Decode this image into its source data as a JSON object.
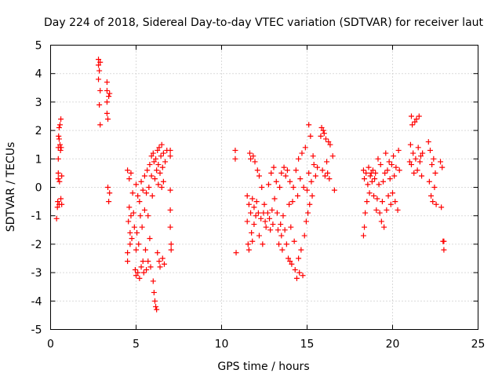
{
  "chart_data": {
    "type": "scatter",
    "title": "Day 224 of 2018, Sidereal Day-to-day VTEC variation (SDTVAR) for receiver laut",
    "xlabel": "GPS time / hours",
    "ylabel": "SDTVAR / TECUs",
    "xlim": [
      0,
      25
    ],
    "ylim": [
      -5,
      5
    ],
    "xticks": [
      0,
      5,
      10,
      15,
      20,
      25
    ],
    "yticks": [
      -5,
      -4,
      -3,
      -2,
      -1,
      0,
      1,
      2,
      3,
      4,
      5
    ],
    "grid": true,
    "marker": "+",
    "color": "#ff0000",
    "series": [
      {
        "name": "SDTVAR",
        "points": [
          [
            0.35,
            -1.1
          ],
          [
            0.4,
            -0.7
          ],
          [
            0.42,
            -0.5
          ],
          [
            0.45,
            0.3
          ],
          [
            0.45,
            0.5
          ],
          [
            0.45,
            1.0
          ],
          [
            0.45,
            1.4
          ],
          [
            0.47,
            1.8
          ],
          [
            0.5,
            2.1
          ],
          [
            0.5,
            1.7
          ],
          [
            0.5,
            -0.6
          ],
          [
            0.52,
            0.2
          ],
          [
            0.55,
            2.2
          ],
          [
            0.55,
            1.5
          ],
          [
            0.58,
            1.3
          ],
          [
            0.6,
            2.4
          ],
          [
            0.6,
            -0.4
          ],
          [
            0.62,
            1.4
          ],
          [
            0.65,
            0.4
          ],
          [
            0.65,
            -0.6
          ],
          [
            2.8,
            4.5
          ],
          [
            2.8,
            4.3
          ],
          [
            2.8,
            3.8
          ],
          [
            2.85,
            4.1
          ],
          [
            2.85,
            2.9
          ],
          [
            2.9,
            2.2
          ],
          [
            2.9,
            3.4
          ],
          [
            2.9,
            4.4
          ],
          [
            3.3,
            3.7
          ],
          [
            3.3,
            3.4
          ],
          [
            3.3,
            3.0
          ],
          [
            3.3,
            2.6
          ],
          [
            3.35,
            2.4
          ],
          [
            3.35,
            0.0
          ],
          [
            3.4,
            3.2
          ],
          [
            3.4,
            -0.5
          ],
          [
            3.45,
            -0.2
          ],
          [
            3.45,
            3.3
          ],
          [
            4.5,
            0.6
          ],
          [
            4.5,
            -2.3
          ],
          [
            4.5,
            -2.6
          ],
          [
            4.55,
            -1.2
          ],
          [
            4.6,
            0.3
          ],
          [
            4.6,
            -0.7
          ],
          [
            4.65,
            -1.6
          ],
          [
            4.65,
            -2.0
          ],
          [
            4.7,
            0.5
          ],
          [
            4.7,
            -1.0
          ],
          [
            4.75,
            -1.8
          ],
          [
            4.8,
            -0.2
          ],
          [
            4.85,
            -0.9
          ],
          [
            4.9,
            -1.4
          ],
          [
            4.95,
            -2.9
          ],
          [
            5.0,
            -3.1
          ],
          [
            5.0,
            -2.2
          ],
          [
            5.0,
            0.1
          ],
          [
            5.05,
            -1.6
          ],
          [
            5.1,
            -0.3
          ],
          [
            5.1,
            -3.0
          ],
          [
            5.15,
            -2.0
          ],
          [
            5.2,
            -0.5
          ],
          [
            5.2,
            -3.2
          ],
          [
            5.25,
            -1.0
          ],
          [
            5.3,
            -2.8
          ],
          [
            5.3,
            0.2
          ],
          [
            5.35,
            -1.4
          ],
          [
            5.4,
            -0.1
          ],
          [
            5.4,
            -2.6
          ],
          [
            5.45,
            -3.0
          ],
          [
            5.5,
            0.4
          ],
          [
            5.5,
            -0.8
          ],
          [
            5.55,
            -2.2
          ],
          [
            5.6,
            -0.2
          ],
          [
            5.6,
            -2.9
          ],
          [
            5.65,
            0.6
          ],
          [
            5.7,
            -1.0
          ],
          [
            5.7,
            -2.6
          ],
          [
            5.75,
            0.0
          ],
          [
            5.8,
            0.8
          ],
          [
            5.8,
            -1.8
          ],
          [
            5.85,
            -2.8
          ],
          [
            5.9,
            1.1
          ],
          [
            5.9,
            0.4
          ],
          [
            5.95,
            -0.3
          ],
          [
            6.0,
            1.2
          ],
          [
            6.0,
            -3.3
          ],
          [
            6.05,
            0.9
          ],
          [
            6.05,
            -3.7
          ],
          [
            6.1,
            0.3
          ],
          [
            6.1,
            -4.0
          ],
          [
            6.15,
            1.0
          ],
          [
            6.15,
            -4.2
          ],
          [
            6.2,
            0.6
          ],
          [
            6.2,
            -4.3
          ],
          [
            6.25,
            1.3
          ],
          [
            6.25,
            -2.3
          ],
          [
            6.3,
            0.1
          ],
          [
            6.3,
            0.8
          ],
          [
            6.35,
            1.4
          ],
          [
            6.35,
            -2.6
          ],
          [
            6.4,
            0.5
          ],
          [
            6.4,
            -2.8
          ],
          [
            6.45,
            1.1
          ],
          [
            6.5,
            0.0
          ],
          [
            6.5,
            1.5
          ],
          [
            6.55,
            -2.5
          ],
          [
            6.55,
            0.7
          ],
          [
            6.6,
            1.2
          ],
          [
            6.6,
            0.2
          ],
          [
            6.65,
            -2.7
          ],
          [
            6.7,
            0.9
          ],
          [
            6.8,
            1.3
          ],
          [
            7.0,
            1.1
          ],
          [
            7.0,
            1.3
          ],
          [
            7.0,
            -0.1
          ],
          [
            7.0,
            -0.8
          ],
          [
            7.0,
            -1.4
          ],
          [
            7.05,
            -2.0
          ],
          [
            7.05,
            -2.2
          ],
          [
            10.8,
            1.3
          ],
          [
            10.8,
            1.0
          ],
          [
            10.85,
            -2.3
          ],
          [
            11.5,
            -0.3
          ],
          [
            11.5,
            -1.2
          ],
          [
            11.55,
            -2.0
          ],
          [
            11.6,
            -0.6
          ],
          [
            11.6,
            -2.2
          ],
          [
            11.65,
            1.2
          ],
          [
            11.7,
            1.0
          ],
          [
            11.7,
            -0.9
          ],
          [
            11.75,
            -1.6
          ],
          [
            11.8,
            -0.4
          ],
          [
            11.8,
            -1.9
          ],
          [
            11.85,
            1.1
          ],
          [
            11.9,
            -0.7
          ],
          [
            11.9,
            -1.3
          ],
          [
            11.95,
            0.9
          ],
          [
            12.0,
            -1.0
          ],
          [
            12.05,
            -0.5
          ],
          [
            12.1,
            0.6
          ],
          [
            12.15,
            -0.9
          ],
          [
            12.2,
            0.4
          ],
          [
            12.2,
            -1.7
          ],
          [
            12.3,
            -1.1
          ],
          [
            12.35,
            0.0
          ],
          [
            12.4,
            -2.0
          ],
          [
            12.45,
            -0.9
          ],
          [
            12.5,
            -0.6
          ],
          [
            12.55,
            -1.2
          ],
          [
            12.6,
            -1.4
          ],
          [
            12.7,
            -0.9
          ],
          [
            12.75,
            0.1
          ],
          [
            12.8,
            -1.1
          ],
          [
            12.85,
            -1.5
          ],
          [
            12.9,
            0.5
          ],
          [
            12.95,
            -0.8
          ],
          [
            13.0,
            -1.3
          ],
          [
            13.05,
            0.7
          ],
          [
            13.1,
            -0.4
          ],
          [
            13.2,
            0.2
          ],
          [
            13.25,
            -0.9
          ],
          [
            13.3,
            -1.5
          ],
          [
            13.35,
            -2.0
          ],
          [
            13.4,
            0.0
          ],
          [
            13.45,
            -1.3
          ],
          [
            13.5,
            -1.7
          ],
          [
            13.5,
            0.5
          ],
          [
            13.55,
            -2.2
          ],
          [
            13.6,
            -1.0
          ],
          [
            13.65,
            0.7
          ],
          [
            13.7,
            -1.5
          ],
          [
            13.75,
            0.4
          ],
          [
            13.8,
            -2.0
          ],
          [
            13.85,
            0.6
          ],
          [
            13.9,
            -2.5
          ],
          [
            13.95,
            -0.6
          ],
          [
            14.0,
            -2.6
          ],
          [
            14.0,
            0.2
          ],
          [
            14.05,
            -1.4
          ],
          [
            14.1,
            -2.7
          ],
          [
            14.15,
            -0.5
          ],
          [
            14.2,
            0.0
          ],
          [
            14.25,
            -1.9
          ],
          [
            14.3,
            -2.9
          ],
          [
            14.35,
            0.6
          ],
          [
            14.4,
            -3.2
          ],
          [
            14.45,
            -0.3
          ],
          [
            14.5,
            -2.5
          ],
          [
            14.5,
            1.0
          ],
          [
            14.55,
            -3.0
          ],
          [
            14.6,
            0.3
          ],
          [
            14.65,
            -2.2
          ],
          [
            14.7,
            1.2
          ],
          [
            14.75,
            -3.1
          ],
          [
            14.8,
            0.0
          ],
          [
            14.85,
            -1.7
          ],
          [
            14.9,
            1.4
          ],
          [
            14.95,
            -1.2
          ],
          [
            15.0,
            -0.1
          ],
          [
            15.05,
            -0.9
          ],
          [
            15.1,
            2.2
          ],
          [
            15.1,
            0.5
          ],
          [
            15.15,
            -0.6
          ],
          [
            15.2,
            1.8
          ],
          [
            15.25,
            0.2
          ],
          [
            15.3,
            -0.3
          ],
          [
            15.35,
            1.1
          ],
          [
            15.4,
            0.8
          ],
          [
            15.5,
            0.4
          ],
          [
            15.6,
            0.7
          ],
          [
            15.8,
            1.8
          ],
          [
            15.85,
            2.1
          ],
          [
            15.9,
            0.6
          ],
          [
            15.95,
            2.0
          ],
          [
            16.0,
            1.9
          ],
          [
            16.05,
            0.4
          ],
          [
            16.1,
            1.7
          ],
          [
            16.15,
            0.9
          ],
          [
            16.2,
            0.5
          ],
          [
            16.25,
            1.6
          ],
          [
            16.3,
            0.3
          ],
          [
            16.35,
            1.5
          ],
          [
            16.5,
            1.1
          ],
          [
            16.6,
            -0.1
          ],
          [
            18.3,
            0.6
          ],
          [
            18.3,
            -1.7
          ],
          [
            18.35,
            0.3
          ],
          [
            18.35,
            -1.4
          ],
          [
            18.4,
            -0.9
          ],
          [
            18.45,
            0.5
          ],
          [
            18.5,
            -0.5
          ],
          [
            18.55,
            0.1
          ],
          [
            18.6,
            0.7
          ],
          [
            18.65,
            -0.2
          ],
          [
            18.7,
            0.4
          ],
          [
            18.75,
            0.5
          ],
          [
            18.8,
            0.2
          ],
          [
            18.85,
            0.6
          ],
          [
            18.9,
            -0.3
          ],
          [
            18.95,
            0.3
          ],
          [
            19.0,
            0.5
          ],
          [
            19.05,
            -0.8
          ],
          [
            19.1,
            -0.4
          ],
          [
            19.15,
            1.0
          ],
          [
            19.2,
            0.1
          ],
          [
            19.25,
            -0.9
          ],
          [
            19.3,
            0.8
          ],
          [
            19.35,
            -1.2
          ],
          [
            19.4,
            -0.5
          ],
          [
            19.45,
            0.2
          ],
          [
            19.5,
            -1.4
          ],
          [
            19.55,
            0.5
          ],
          [
            19.6,
            1.2
          ],
          [
            19.65,
            -0.8
          ],
          [
            19.7,
            0.6
          ],
          [
            19.75,
            -0.3
          ],
          [
            19.8,
            0.9
          ],
          [
            19.85,
            0.3
          ],
          [
            19.9,
            -0.6
          ],
          [
            19.95,
            0.8
          ],
          [
            20.0,
            -0.2
          ],
          [
            20.05,
            1.1
          ],
          [
            20.1,
            0.4
          ],
          [
            20.15,
            -0.5
          ],
          [
            20.2,
            0.7
          ],
          [
            20.3,
            -0.8
          ],
          [
            20.35,
            1.3
          ],
          [
            20.4,
            0.6
          ],
          [
            21.0,
            0.9
          ],
          [
            21.05,
            1.5
          ],
          [
            21.1,
            2.5
          ],
          [
            21.1,
            0.8
          ],
          [
            21.15,
            2.2
          ],
          [
            21.2,
            1.2
          ],
          [
            21.25,
            0.5
          ],
          [
            21.3,
            2.3
          ],
          [
            21.35,
            1.0
          ],
          [
            21.4,
            2.4
          ],
          [
            21.45,
            0.6
          ],
          [
            21.5,
            1.4
          ],
          [
            21.55,
            2.5
          ],
          [
            21.6,
            0.9
          ],
          [
            21.65,
            1.1
          ],
          [
            21.7,
            0.4
          ],
          [
            21.75,
            1.2
          ],
          [
            22.1,
            1.6
          ],
          [
            22.15,
            0.2
          ],
          [
            22.2,
            1.3
          ],
          [
            22.25,
            -0.3
          ],
          [
            22.3,
            0.8
          ],
          [
            22.35,
            -0.5
          ],
          [
            22.4,
            1.0
          ],
          [
            22.45,
            0.0
          ],
          [
            22.5,
            0.5
          ],
          [
            22.55,
            -0.6
          ],
          [
            22.8,
            0.9
          ],
          [
            22.85,
            -0.7
          ],
          [
            22.9,
            0.7
          ],
          [
            22.95,
            -1.9
          ],
          [
            23.0,
            -2.2
          ],
          [
            23.0,
            -1.9
          ]
        ]
      }
    ]
  }
}
